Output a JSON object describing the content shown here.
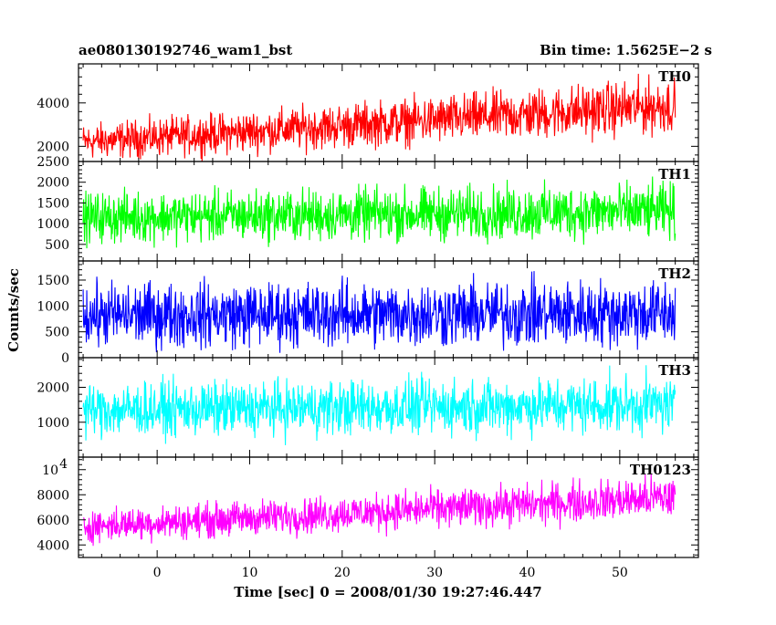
{
  "header": {
    "title": "ae080130192746_wam1_bst",
    "bin_time": "Bin time: 1.5625E−2 s"
  },
  "chart_data": {
    "type": "line",
    "xlabel": "Time [sec] 0 = 2008/01/30 19:27:46.447",
    "ylabel": "Counts/sec",
    "xlim": [
      -8.5,
      58.5
    ],
    "data_range": [
      -8.0,
      56.0
    ],
    "x_ticks": [
      0,
      10,
      20,
      30,
      40,
      50
    ],
    "x_tick_labels": [
      "0",
      "10",
      "20",
      "30",
      "40",
      "50"
    ],
    "panels": [
      {
        "name": "TH0",
        "color": "#ff0000",
        "ylim": [
          1300,
          5800
        ],
        "yticks": [
          2000,
          4000
        ],
        "ytick_labels": [
          "2000",
          "4000"
        ],
        "trend": [
          [
            -8,
            2200,
            950
          ],
          [
            56,
            3900,
            1500
          ]
        ]
      },
      {
        "name": "TH1",
        "color": "#00ff00",
        "ylim": [
          100,
          2500
        ],
        "yticks": [
          500,
          1000,
          1500,
          2000,
          2500
        ],
        "ytick_labels": [
          "500",
          "1000",
          "1500",
          "2000",
          "2500"
        ],
        "trend": [
          [
            -8,
            1150,
            700
          ],
          [
            56,
            1300,
            780
          ]
        ]
      },
      {
        "name": "TH2",
        "color": "#0000ff",
        "ylim": [
          0,
          1870
        ],
        "yticks": [
          0,
          500,
          1000,
          1500
        ],
        "ytick_labels": [
          "0",
          "500",
          "1000",
          "1500"
        ],
        "trend": [
          [
            -8,
            820,
            720
          ],
          [
            56,
            860,
            760
          ]
        ]
      },
      {
        "name": "TH3",
        "color": "#00ffff",
        "ylim": [
          0,
          2850
        ],
        "yticks": [
          1000,
          2000
        ],
        "ytick_labels": [
          "1000",
          "2000"
        ],
        "trend": [
          [
            -8,
            1350,
            900
          ],
          [
            56,
            1500,
            950
          ]
        ]
      },
      {
        "name": "TH0123",
        "color": "#ff00ff",
        "ylim": [
          3000,
          11000
        ],
        "yticks": [
          4000,
          6000,
          8000,
          10000
        ],
        "ytick_labels": [
          "4000",
          "6000",
          "8000",
          "10⁴"
        ],
        "trend": [
          [
            -8,
            5500,
            1500
          ],
          [
            56,
            7800,
            2000
          ]
        ]
      }
    ]
  }
}
